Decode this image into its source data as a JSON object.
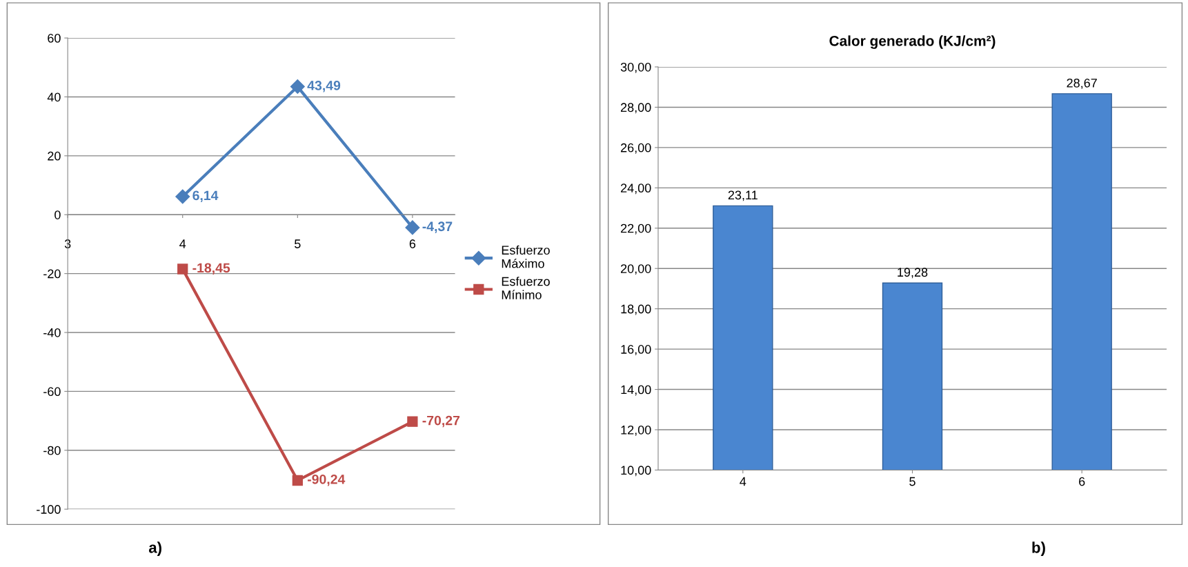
{
  "chart_data": [
    {
      "type": "line",
      "x": [
        4,
        5,
        6
      ],
      "xlim": [
        3,
        6.37
      ],
      "xticks": [
        3,
        4,
        5,
        6
      ],
      "ylim": [
        -100,
        60
      ],
      "yticks": [
        -100,
        -80,
        -60,
        -40,
        -20,
        0,
        20,
        40,
        60
      ],
      "grid": "y",
      "legend": "right",
      "line_style": "solid",
      "series": [
        {
          "name": "Esfuerzo\nMáximo",
          "color": "#4a7ebb",
          "marker": "diamond",
          "values": [
            6.14,
            43.49,
            -4.37
          ],
          "value_labels": [
            "6,14",
            "43,49",
            "-4,37"
          ]
        },
        {
          "name": "Esfuerzo\nMínimo",
          "color": "#be4b48",
          "marker": "square",
          "values": [
            -18.45,
            -90.24,
            -70.27
          ],
          "value_labels": [
            "-18,45",
            "-90,24",
            "-70,27"
          ]
        }
      ],
      "annotations": [
        "a)"
      ]
    },
    {
      "type": "bar",
      "title": "Calor generado (KJ/cm²)",
      "categories": [
        "4",
        "5",
        "6"
      ],
      "values": [
        23.11,
        19.28,
        28.67
      ],
      "value_labels": [
        "23,11",
        "19,28",
        "28,67"
      ],
      "color": "#4a86d0",
      "grid": "y",
      "ylim": [
        10,
        30
      ],
      "yticks": [
        {
          "value": 10,
          "label": "10,00"
        },
        {
          "value": 12,
          "label": "12,00"
        },
        {
          "value": 14,
          "label": "14,00"
        },
        {
          "value": 16,
          "label": "16,00"
        },
        {
          "value": 18,
          "label": "18,00"
        },
        {
          "value": 20,
          "label": "20,00"
        },
        {
          "value": 22,
          "label": "22,00"
        },
        {
          "value": 24,
          "label": "24,00"
        },
        {
          "value": 26,
          "label": "26,00"
        },
        {
          "value": 28,
          "label": "28,00"
        },
        {
          "value": 30,
          "label": "30,00"
        }
      ],
      "annotations": [
        "b)"
      ]
    }
  ]
}
